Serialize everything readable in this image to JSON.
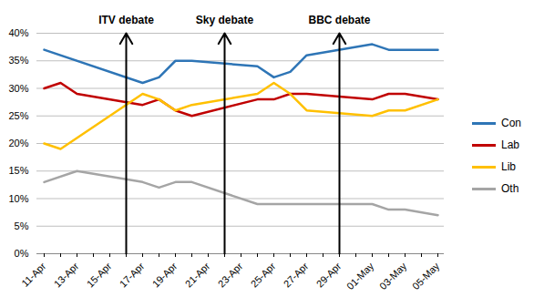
{
  "chart_data": {
    "type": "line",
    "categories": [
      "11-Apr",
      null,
      "13-Apr",
      null,
      "15-Apr",
      null,
      "17-Apr",
      null,
      "19-Apr",
      null,
      "21-Apr",
      null,
      "23-Apr",
      null,
      "25-Apr",
      null,
      "27-Apr",
      null,
      "29-Apr",
      null,
      "01-May",
      null,
      "03-May",
      null,
      "05-May"
    ],
    "series": [
      {
        "name": "Con",
        "color": "#2e75b6",
        "values": [
          37,
          null,
          null,
          null,
          null,
          null,
          31,
          32,
          35,
          35,
          null,
          null,
          null,
          34,
          32,
          33,
          36,
          null,
          null,
          null,
          38,
          37,
          37,
          null,
          37
        ]
      },
      {
        "name": "Lab",
        "color": "#c00000",
        "values": [
          30,
          31,
          29,
          null,
          null,
          null,
          27,
          28,
          26,
          25,
          null,
          null,
          null,
          28,
          28,
          29,
          29,
          null,
          null,
          null,
          28,
          29,
          29,
          null,
          28
        ]
      },
      {
        "name": "Lib",
        "color": "#ffc000",
        "values": [
          20,
          19,
          null,
          null,
          null,
          null,
          29,
          28,
          26,
          27,
          null,
          null,
          null,
          29,
          31,
          29,
          26,
          null,
          null,
          null,
          25,
          26,
          26,
          null,
          28
        ]
      },
      {
        "name": "Oth",
        "color": "#a5a5a5",
        "values": [
          13,
          null,
          15,
          null,
          null,
          null,
          13,
          12,
          13,
          13,
          null,
          null,
          null,
          9,
          9,
          9,
          9,
          null,
          null,
          null,
          9,
          8,
          8,
          null,
          7
        ]
      }
    ],
    "annotations": [
      {
        "text": "ITV debate",
        "x": 5
      },
      {
        "text": "Sky debate",
        "x": 11
      },
      {
        "text": "BBC debate",
        "x": 18
      }
    ],
    "ylim": [
      0,
      40
    ],
    "yticks": [
      {
        "value": 0,
        "label": "0%"
      },
      {
        "value": 5,
        "label": "5%"
      },
      {
        "value": 10,
        "label": "10%"
      },
      {
        "value": 15,
        "label": "15%"
      },
      {
        "value": 20,
        "label": "20%"
      },
      {
        "value": 25,
        "label": "25%"
      },
      {
        "value": 30,
        "label": "30%"
      },
      {
        "value": 35,
        "label": "35%"
      },
      {
        "value": 40,
        "label": "40%"
      }
    ],
    "grid": true,
    "legend": "right"
  }
}
